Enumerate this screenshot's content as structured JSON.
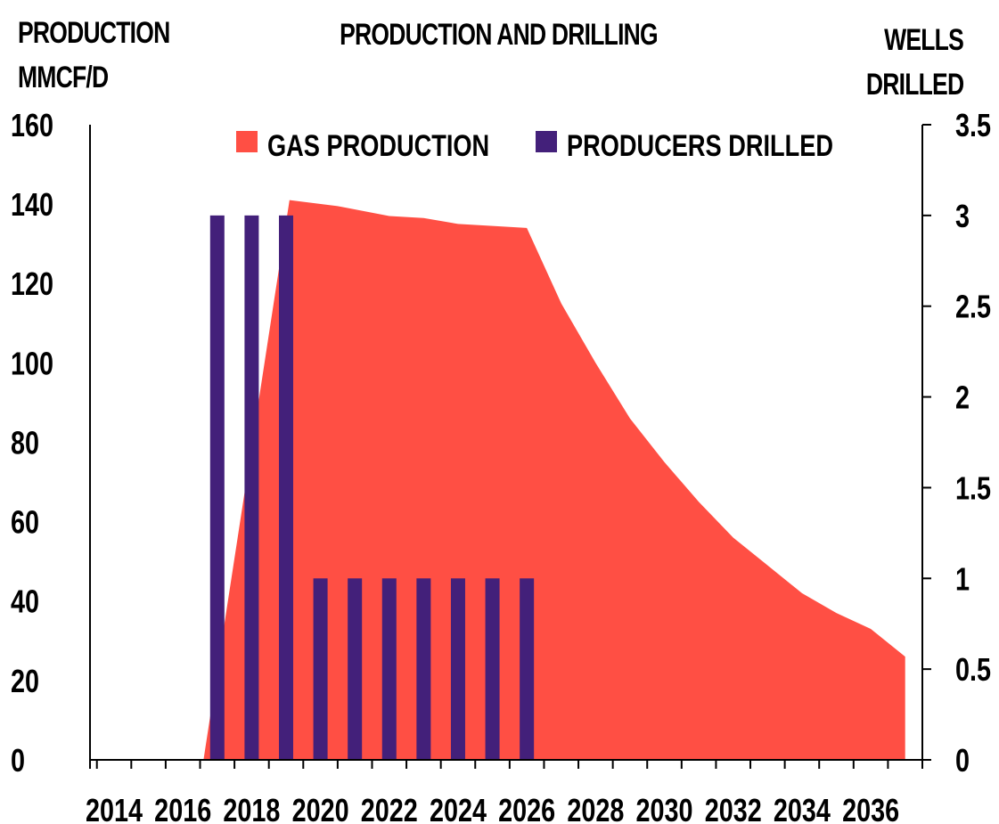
{
  "chart_data": {
    "type": "bar+area",
    "title": "PRODUCTION AND DRILLING",
    "y_left_label": [
      "PRODUCTION",
      "MMCF/D"
    ],
    "y_right_label": [
      "WELLS",
      "DRILLED"
    ],
    "colors": {
      "area": "#ff4f44",
      "bar": "#43207a",
      "axis": "#000000"
    },
    "x_ticks": [
      "2014",
      "2016",
      "2018",
      "2020",
      "2022",
      "2024",
      "2026",
      "2028",
      "2030",
      "2032",
      "2034",
      "2036"
    ],
    "y_left": {
      "min": 0,
      "max": 160,
      "ticks": [
        "0",
        "20",
        "40",
        "60",
        "80",
        "100",
        "120",
        "140",
        "160"
      ]
    },
    "y_right": {
      "min": 0,
      "max": 3.5,
      "ticks": [
        "0",
        "0.5",
        "1",
        "1.5",
        "2",
        "2.5",
        "3",
        "3.5"
      ]
    },
    "legend": {
      "placement": "top-center",
      "items": [
        "GAS PRODUCTION",
        "PRODUCERS DRILLED"
      ]
    },
    "series": [
      {
        "name": "GAS PRODUCTION",
        "type": "area",
        "axis": "left",
        "x": [
          2016.6,
          2019.1,
          2020.5,
          2022,
          2023,
          2024,
          2025,
          2026,
          2027,
          2028,
          2029,
          2030,
          2031,
          2032,
          2033,
          2034,
          2035,
          2036,
          2037
        ],
        "values": [
          0,
          141,
          139.5,
          137,
          136.5,
          135,
          134.5,
          134,
          115,
          100,
          86,
          75,
          65,
          56,
          49,
          42,
          37,
          33,
          26
        ]
      },
      {
        "name": "PRODUCERS DRILLED",
        "type": "bar",
        "axis": "right",
        "x": [
          2017,
          2018,
          2019,
          2020,
          2021,
          2022,
          2023,
          2024,
          2025,
          2026
        ],
        "values": [
          3,
          3,
          3,
          1,
          1,
          1,
          1,
          1,
          1,
          1
        ]
      }
    ]
  }
}
